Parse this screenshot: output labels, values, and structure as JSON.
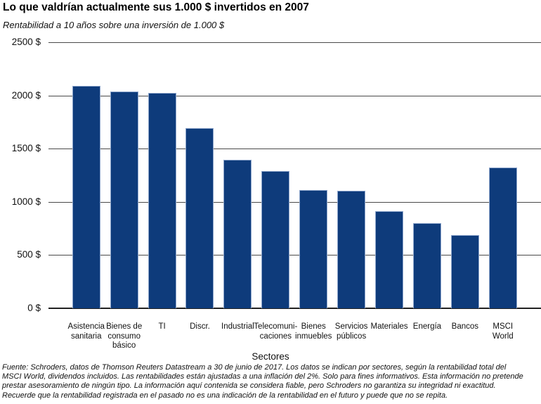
{
  "header": {
    "title": "Lo que valdrían actualmente sus 1.000 $ invertidos en 2007",
    "subtitle": "Rentabilidad a 10 años sobre una inversión de 1.000 $"
  },
  "chart_data": {
    "type": "bar",
    "title": "Lo que valdrían actualmente sus 1.000 $ invertidos en 2007",
    "subtitle": "Rentabilidad a 10 años sobre una inversión de 1.000 $",
    "categories": [
      "Asistencia\nsanitaria",
      "Bienes de\nconsumo\nbásico",
      "TI",
      "Discr.",
      "Industrial",
      "Telecomuni-\ncaciones",
      "Bienes\ninmuebles",
      "Servicios\npúblicos",
      "Materiales",
      "Energía",
      "Bancos",
      "MSCI\nWorld"
    ],
    "values": [
      2090,
      2040,
      2025,
      1690,
      1395,
      1290,
      1110,
      1105,
      910,
      800,
      690,
      1320
    ],
    "xlabel": "Sectores",
    "ylabel": "",
    "ylim": [
      0,
      2500
    ],
    "yticks": [
      0,
      500,
      1000,
      1500,
      2000,
      2500
    ],
    "ytick_suffix": " $",
    "grid": true,
    "legend": "none",
    "bar_color": "#0e3b7b"
  },
  "footer": {
    "source_text": "Fuente: Schroders, datos de Thomson Reuters Datastream a 30 de junio de 2017. Los datos se indican por sectores, según la rentabilidad total del\nMSCI World, dividendos incluidos. Las rentabilidades están ajustadas a una inflación del 2%. Solo para fines informativos. Esta información no pretende\nprestar asesoramiento de ningún tipo. La información aquí contenida se considera fiable, pero Schroders no garantiza su integridad ni exactitud.\nRecuerde que la rentabilidad registrada en el pasado no es una indicación de la rentabilidad en el futuro y puede que no se repita."
  }
}
